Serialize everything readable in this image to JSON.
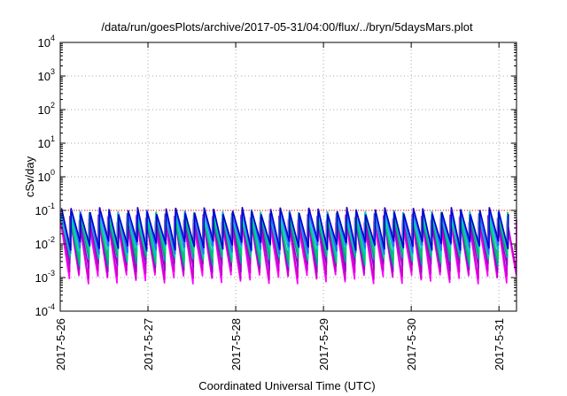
{
  "chart_data": {
    "type": "line",
    "title": "/data/run/goesPlots/archive/2017-05-31/04:00/flux/../bryn/5daysMars.plot",
    "xlabel": "Coordinated Universal Time (UTC)",
    "ylabel": "cSv/day",
    "x_ticks": [
      "2017-5-26",
      "2017-5-27",
      "2017-5-28",
      "2017-5-29",
      "2017-5-30",
      "2017-5-31"
    ],
    "xlim_days": [
      0,
      5.2
    ],
    "y_scale": "log",
    "ylim": [
      0.0001,
      10000
    ],
    "y_ticks": [
      {
        "base": "10",
        "exp": "4"
      },
      {
        "base": "10",
        "exp": "3"
      },
      {
        "base": "10",
        "exp": "2"
      },
      {
        "base": "10",
        "exp": "1"
      },
      {
        "base": "10",
        "exp": "0"
      },
      {
        "base": "10",
        "exp": "-1"
      },
      {
        "base": "10",
        "exp": "-2"
      },
      {
        "base": "10",
        "exp": "-3"
      },
      {
        "base": "10",
        "exp": "-4"
      }
    ],
    "grid": true,
    "reference_line": {
      "value": 0.1,
      "color": "#ff0000"
    },
    "sawtooth": {
      "cycles": 48,
      "start": 0.0,
      "end": 5.2
    },
    "series": [
      {
        "color": "#ff00ff",
        "peak": 0.055,
        "trough": 0.0009
      },
      {
        "color": "#cc00cc",
        "peak": 0.06,
        "trough": 0.0012
      },
      {
        "color": "#9900cc",
        "peak": 0.065,
        "trough": 0.002
      },
      {
        "color": "#009999",
        "peak": 0.07,
        "trough": 0.003
      },
      {
        "color": "#00cc66",
        "peak": 0.075,
        "trough": 0.004
      },
      {
        "color": "#00cccc",
        "peak": 0.08,
        "trough": 0.0055
      },
      {
        "color": "#3366ff",
        "peak": 0.09,
        "trough": 0.007
      },
      {
        "color": "#0000cc",
        "peak": 0.1,
        "trough": 0.009
      }
    ]
  }
}
